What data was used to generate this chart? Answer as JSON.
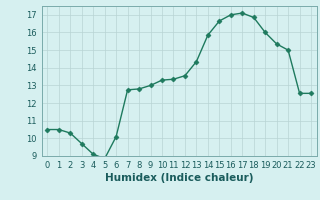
{
  "xlabel": "Humidex (Indice chaleur)",
  "x": [
    0,
    1,
    2,
    3,
    4,
    5,
    6,
    7,
    8,
    9,
    10,
    11,
    12,
    13,
    14,
    15,
    16,
    17,
    18,
    19,
    20,
    21,
    22,
    23
  ],
  "y": [
    10.5,
    10.5,
    10.3,
    9.7,
    9.1,
    8.85,
    10.1,
    12.75,
    12.8,
    13.0,
    13.3,
    13.35,
    13.55,
    14.35,
    15.85,
    16.65,
    17.0,
    17.1,
    16.85,
    16.0,
    15.35,
    15.0,
    12.55,
    12.55
  ],
  "line_color": "#1e7a5e",
  "marker": "D",
  "marker_size": 2.5,
  "bg_color": "#d6f0f0",
  "grid_color": "#b8d4d4",
  "ylim": [
    9,
    17.5
  ],
  "xlim": [
    -0.5,
    23.5
  ],
  "yticks": [
    9,
    10,
    11,
    12,
    13,
    14,
    15,
    16,
    17
  ],
  "xticks": [
    0,
    1,
    2,
    3,
    4,
    5,
    6,
    7,
    8,
    9,
    10,
    11,
    12,
    13,
    14,
    15,
    16,
    17,
    18,
    19,
    20,
    21,
    22,
    23
  ],
  "tick_fontsize": 6,
  "xlabel_fontsize": 7.5,
  "line_width": 1.0,
  "text_color": "#1a5c5c"
}
